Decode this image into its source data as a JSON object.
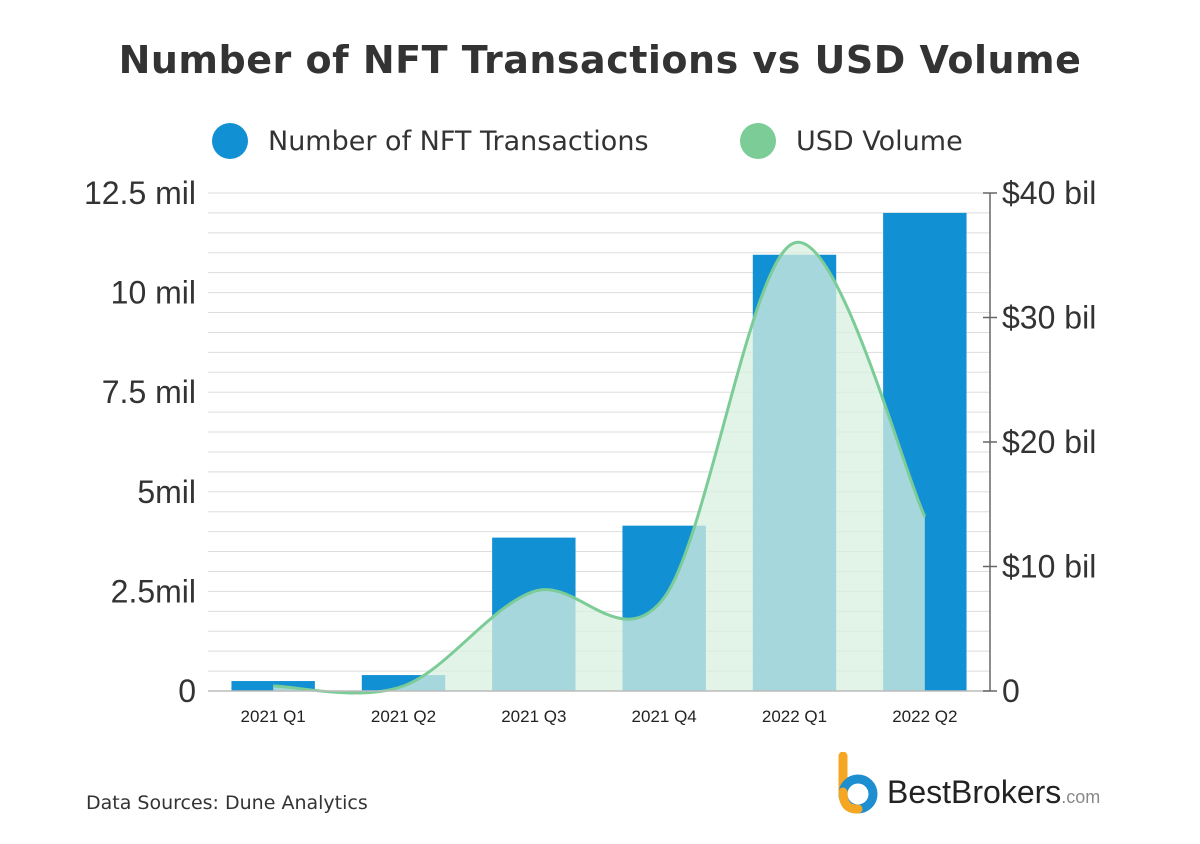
{
  "colors": {
    "bar": "#1190d4",
    "line": "#7ccc97",
    "area": "#d8efe0",
    "grid": "#dddddd",
    "text": "#333333",
    "brand_blue": "#1d8fd1",
    "brand_orange": "#f5a623"
  },
  "legend": {
    "items": [
      {
        "label": "Number of NFT Transactions",
        "color": "#1190d4"
      },
      {
        "label": "USD Volume",
        "color": "#7ccc97"
      }
    ]
  },
  "source": "Data Sources: Dune Analytics",
  "brand": {
    "name": "BestBrokers",
    "tld": ".com",
    "logo_icon": "bestbrokers-logo-icon"
  },
  "chart_data": {
    "type": "bar",
    "title": "Number of NFT Transactions vs USD Volume",
    "categories": [
      "2021 Q1",
      "2021 Q2",
      "2021 Q3",
      "2021 Q4",
      "2022 Q1",
      "2022 Q2"
    ],
    "series": [
      {
        "name": "Number of NFT Transactions",
        "type": "bar",
        "axis": "left",
        "values": [
          250000,
          400000,
          3850000,
          4150000,
          10950000,
          12000000
        ]
      },
      {
        "name": "USD Volume",
        "type": "area",
        "axis": "right",
        "values": [
          0.4,
          0.4,
          8,
          7.5,
          36,
          14
        ]
      }
    ],
    "y_left": {
      "ylim": [
        0,
        12500000
      ],
      "ticks": [
        {
          "value": 0,
          "label": "0"
        },
        {
          "value": 2500000,
          "label": "2.5mil"
        },
        {
          "value": 5000000,
          "label": "5mil"
        },
        {
          "value": 7500000,
          "label": "7.5 mil"
        },
        {
          "value": 10000000,
          "label": "10 mil"
        },
        {
          "value": 12500000,
          "label": "12.5 mil"
        }
      ]
    },
    "y_right": {
      "ylim": [
        0,
        40
      ],
      "ticks": [
        {
          "value": 0,
          "label": "0"
        },
        {
          "value": 10,
          "label": "$10 bil"
        },
        {
          "value": 20,
          "label": "$20 bil"
        },
        {
          "value": 30,
          "label": "$30 bil"
        },
        {
          "value": 40,
          "label": "$40 bil"
        }
      ]
    },
    "grid": true,
    "legend_position": "top"
  }
}
